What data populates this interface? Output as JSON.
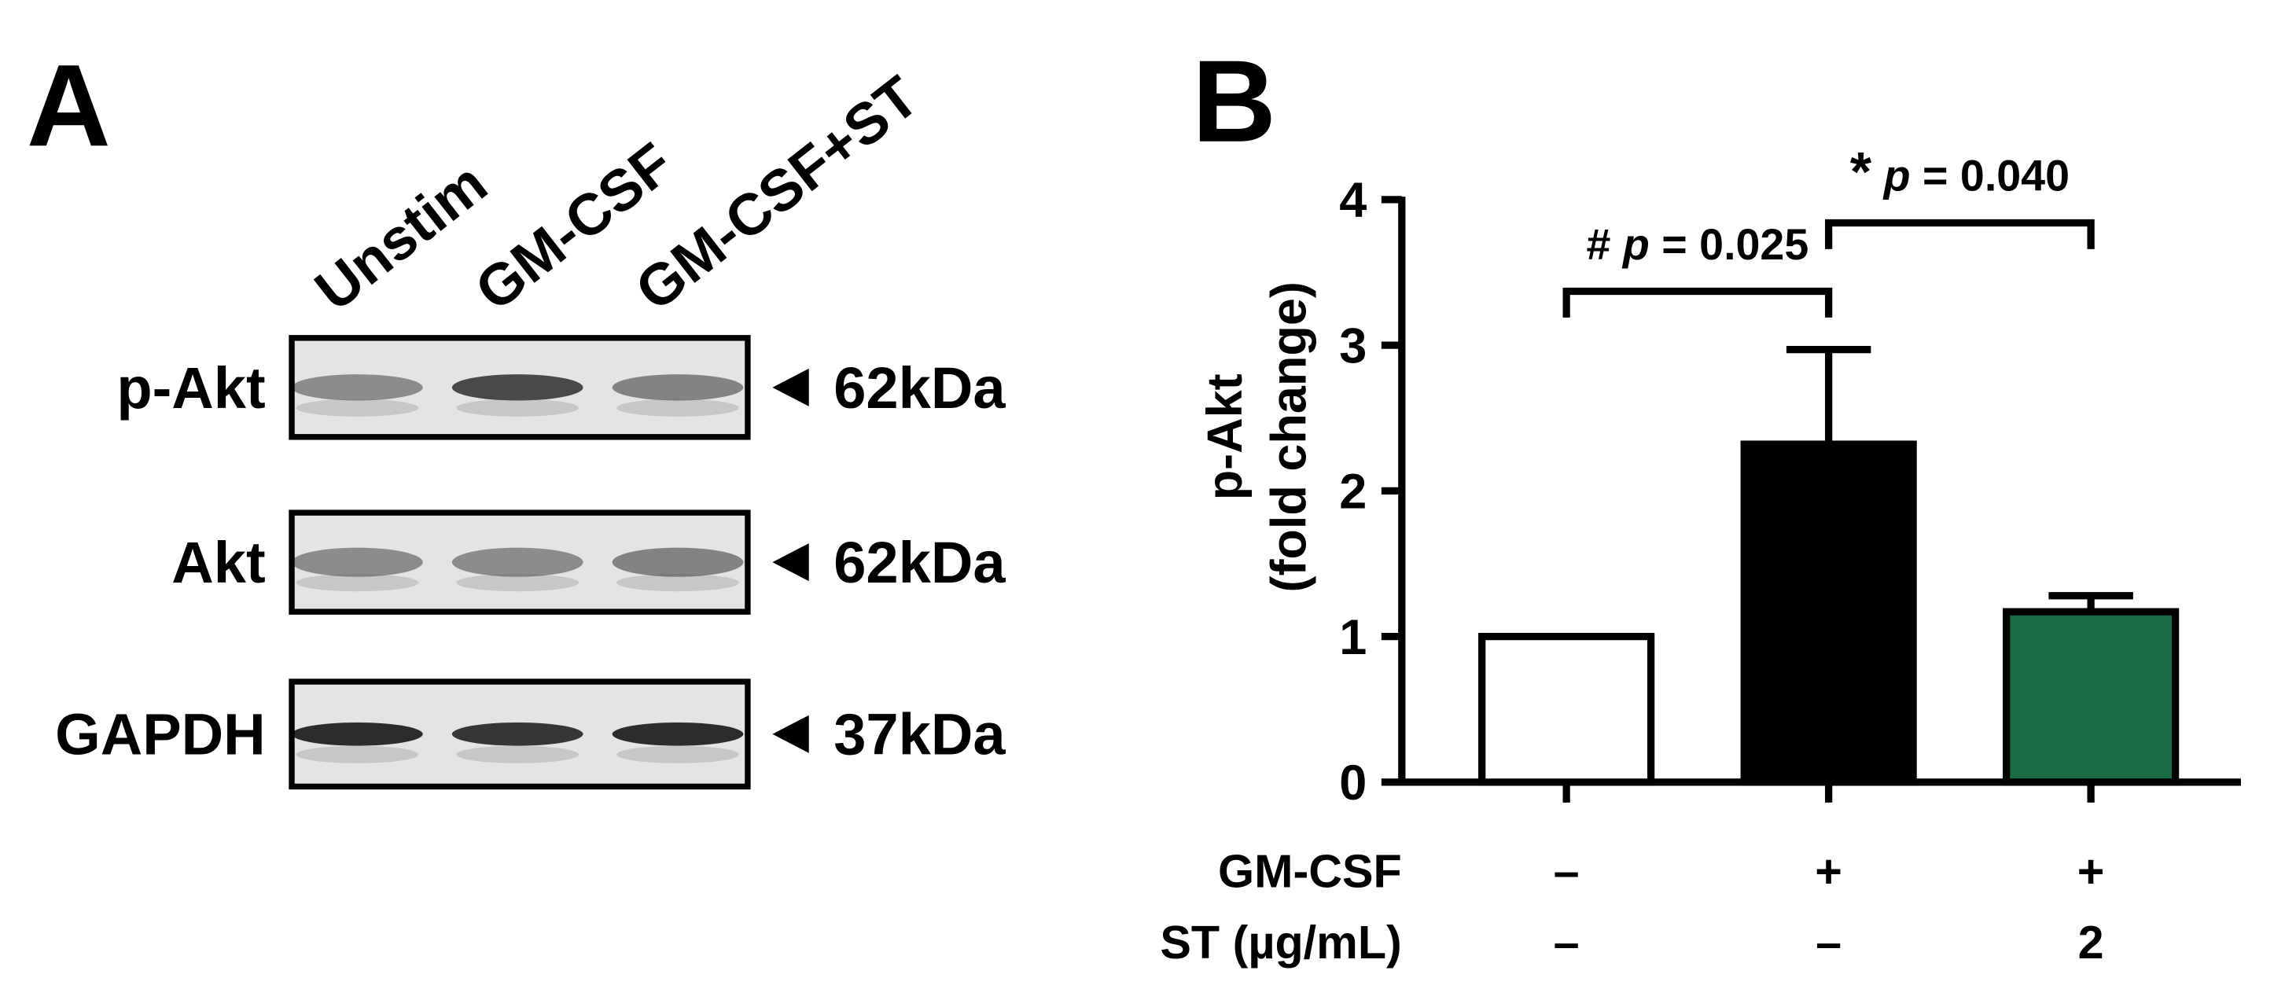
{
  "panel_a": {
    "panel_label": "A",
    "lanes": [
      "Unstim",
      "GM-CSF",
      "GM-CSF+ST"
    ],
    "blots": [
      {
        "protein": "p-Akt",
        "size": "62kDa"
      },
      {
        "protein": "Akt",
        "size": "62kDa"
      },
      {
        "protein": "GAPDH",
        "size": "37kDa"
      }
    ]
  },
  "chart_data": {
    "type": "bar",
    "panel_label": "B",
    "y_label": [
      "p-Akt",
      "(fold change)"
    ],
    "categories": [
      null,
      null,
      null
    ],
    "values": [
      1.0,
      2.32,
      1.17
    ],
    "errors": [
      null,
      0.65,
      0.11
    ],
    "colors": [
      "#ffffff",
      "#000000",
      "#1b6b47"
    ],
    "ylim": [
      0,
      4
    ],
    "yticks": [
      0,
      1,
      2,
      3,
      4
    ],
    "conditions": [
      {
        "name": "GM-CSF",
        "values": [
          "–",
          "+",
          "+"
        ]
      },
      {
        "name": "ST (µg/mL)",
        "values": [
          "–",
          "–",
          "2"
        ]
      }
    ],
    "comparisons": [
      {
        "symbol": "#",
        "p_symbol": "p",
        "p_text": "= 0.025"
      },
      {
        "symbol": "*",
        "p_symbol": "p",
        "p_text": "= 0.040"
      }
    ]
  }
}
